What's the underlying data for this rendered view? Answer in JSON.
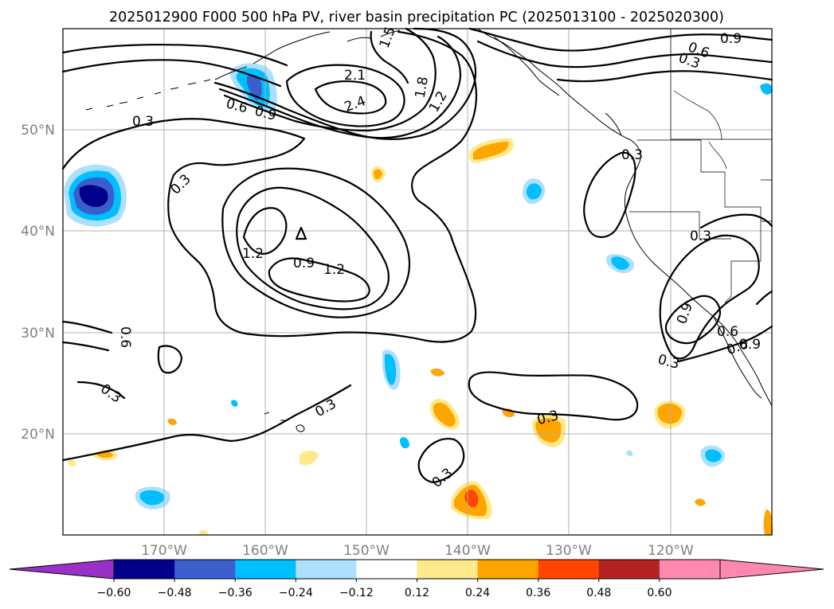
{
  "title": "2025012900 F000 500 hPa PV, river basin precipitation PC (2025013100 - 2025020300)",
  "lat_labels": [
    "50°N",
    "40°N",
    "30°N",
    "20°N"
  ],
  "lon_labels": [
    "170°W",
    "160°W",
    "150°W",
    "140°W",
    "130°W",
    "120°W"
  ],
  "contour_labels": [
    "1.5",
    "0.6",
    "0.9",
    "0.3",
    "2.1",
    "2.4",
    "1.8",
    "1.2",
    "0.6",
    "0.9",
    "0.3",
    "0.3",
    "1.2",
    "0.9",
    "1.2",
    "0.3",
    "0.6",
    "0.9",
    "0.3",
    "0.3",
    "0.3",
    "0.3",
    "0.3",
    "0.6",
    "0.9",
    "0.6",
    "0.3"
  ],
  "colorbar": {
    "ticks": [
      "−0.60",
      "−0.48",
      "−0.36",
      "−0.24",
      "−0.12",
      "0.12",
      "0.24",
      "0.36",
      "0.48",
      "0.60"
    ],
    "colors": {
      "under": "#9b30c8",
      "bins": [
        "#00008b",
        "#3a5fcd",
        "#00bfff",
        "#addfff",
        "#ffffff",
        "#ffe98a",
        "#ffa500",
        "#ff4500",
        "#b22222",
        "#ff88b0"
      ],
      "over": "#ff88b0"
    }
  },
  "colors": {
    "neg_light": "#addfff",
    "neg_mid": "#00bfff",
    "neg_dark": "#3a5fcd",
    "neg_darkest": "#00008b",
    "pos_light": "#ffe98a",
    "pos_mid": "#ffa500",
    "pos_dark": "#ff4500"
  }
}
